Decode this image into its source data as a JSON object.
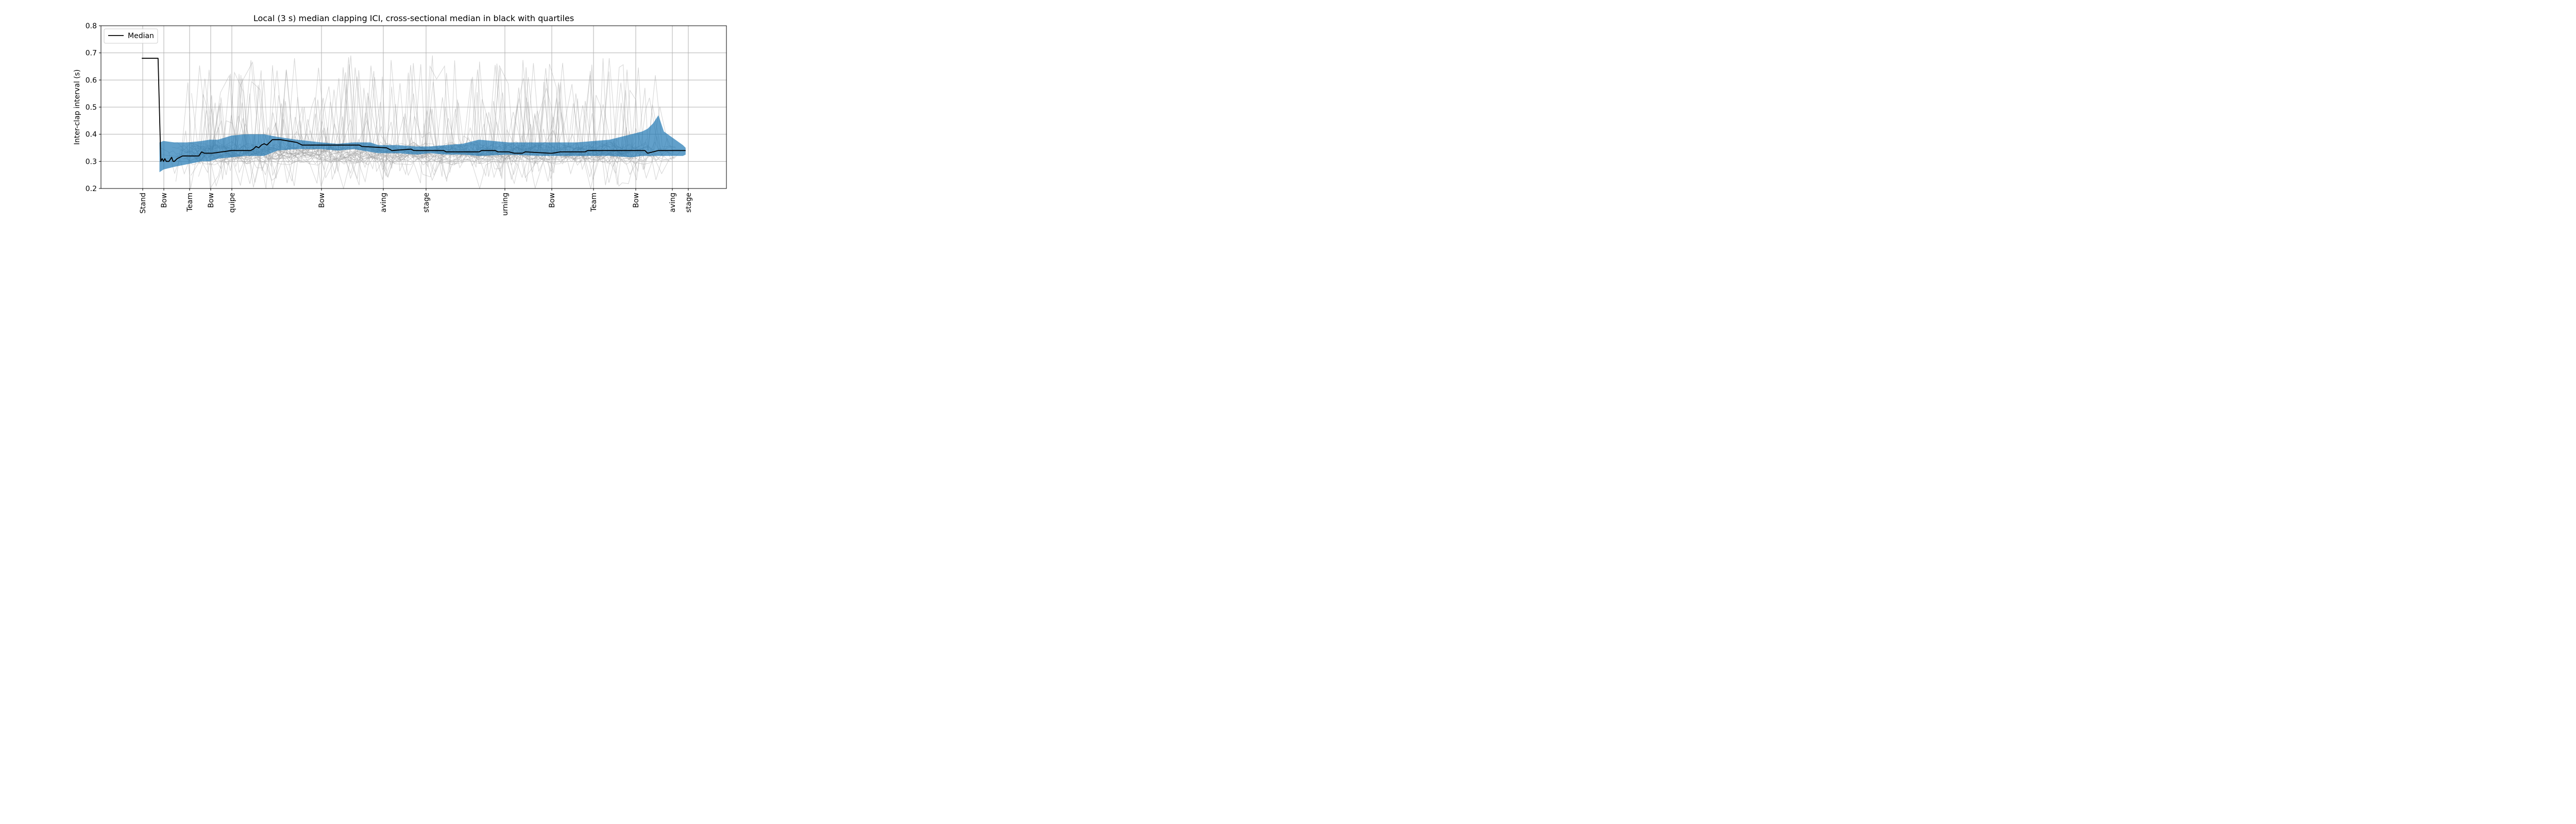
{
  "chart_data": {
    "type": "line",
    "title": "Local (3 s) median clapping ICI, cross-sectional median in black with quartiles",
    "ylabel": "Inter-clap interval (s)",
    "xlabel": "",
    "ylim": [
      0.2,
      0.8
    ],
    "yticks": [
      "0.2",
      "0.3",
      "0.4",
      "0.5",
      "0.6",
      "0.7",
      "0.8"
    ],
    "grid": "horizontal lines at y ticks; vertical lines at event markers",
    "legend": {
      "position": "top-left",
      "entries": [
        "Median"
      ]
    },
    "event_markers": [
      "Stand",
      "Bow",
      "Team",
      "Bow",
      "quipe",
      "Bow",
      "aving",
      "stage",
      "urning",
      "Bow",
      "Team",
      "Bow",
      "aving",
      "stage"
    ],
    "colors": {
      "median": "#000000",
      "quartile_band": "#1f77b4",
      "individual_traces": "#a0a0a0"
    },
    "series": [
      {
        "name": "Median",
        "x": [
          0,
          6,
          7,
          7.5,
          8,
          8.5,
          9,
          10,
          11,
          11.5,
          12,
          13,
          15,
          17,
          21,
          22,
          23,
          26,
          33,
          38,
          40,
          41,
          42,
          43,
          44,
          45,
          46,
          47,
          48,
          50,
          51,
          57,
          59,
          60,
          80,
          81,
          90,
          91,
          92,
          99,
          100,
          111,
          112,
          123,
          124,
          125,
          130,
          131,
          135,
          137,
          140,
          141,
          150,
          151,
          154,
          155,
          163,
          164,
          185,
          186,
          190,
          191,
          200
        ],
        "y": [
          0.68,
          0.68,
          0.3,
          0.31,
          0.3,
          0.31,
          0.3,
          0.3,
          0.315,
          0.3,
          0.3,
          0.31,
          0.32,
          0.32,
          0.32,
          0.335,
          0.33,
          0.33,
          0.34,
          0.34,
          0.34,
          0.345,
          0.355,
          0.35,
          0.36,
          0.365,
          0.36,
          0.37,
          0.38,
          0.38,
          0.38,
          0.37,
          0.36,
          0.36,
          0.36,
          0.355,
          0.35,
          0.345,
          0.34,
          0.345,
          0.34,
          0.34,
          0.335,
          0.335,
          0.335,
          0.34,
          0.34,
          0.335,
          0.335,
          0.33,
          0.33,
          0.335,
          0.33,
          0.33,
          0.335,
          0.335,
          0.335,
          0.34,
          0.34,
          0.33,
          0.34,
          0.34,
          0.34
        ]
      },
      {
        "name": "",
        "role": "quartile band (Q1–Q3)",
        "x": [
          6.5,
          8,
          12,
          17,
          22,
          25,
          28,
          33,
          38,
          45,
          50,
          57,
          66,
          72,
          78,
          84,
          87,
          94,
          101,
          106,
          112,
          118,
          124,
          135,
          147,
          160,
          172,
          180,
          184,
          186,
          188,
          190,
          192,
          199,
          200
        ],
        "upper": [
          0.37,
          0.375,
          0.37,
          0.37,
          0.375,
          0.38,
          0.38,
          0.395,
          0.4,
          0.4,
          0.39,
          0.38,
          0.37,
          0.365,
          0.37,
          0.37,
          0.36,
          0.36,
          0.355,
          0.355,
          0.36,
          0.365,
          0.38,
          0.37,
          0.37,
          0.37,
          0.38,
          0.4,
          0.41,
          0.42,
          0.44,
          0.47,
          0.41,
          0.36,
          0.35
        ],
        "lower": [
          0.26,
          0.27,
          0.28,
          0.29,
          0.3,
          0.3,
          0.31,
          0.315,
          0.32,
          0.32,
          0.34,
          0.345,
          0.345,
          0.34,
          0.345,
          0.335,
          0.33,
          0.33,
          0.325,
          0.33,
          0.325,
          0.325,
          0.32,
          0.325,
          0.32,
          0.32,
          0.32,
          0.315,
          0.32,
          0.32,
          0.32,
          0.32,
          0.32,
          0.32,
          0.325
        ]
      }
    ]
  }
}
